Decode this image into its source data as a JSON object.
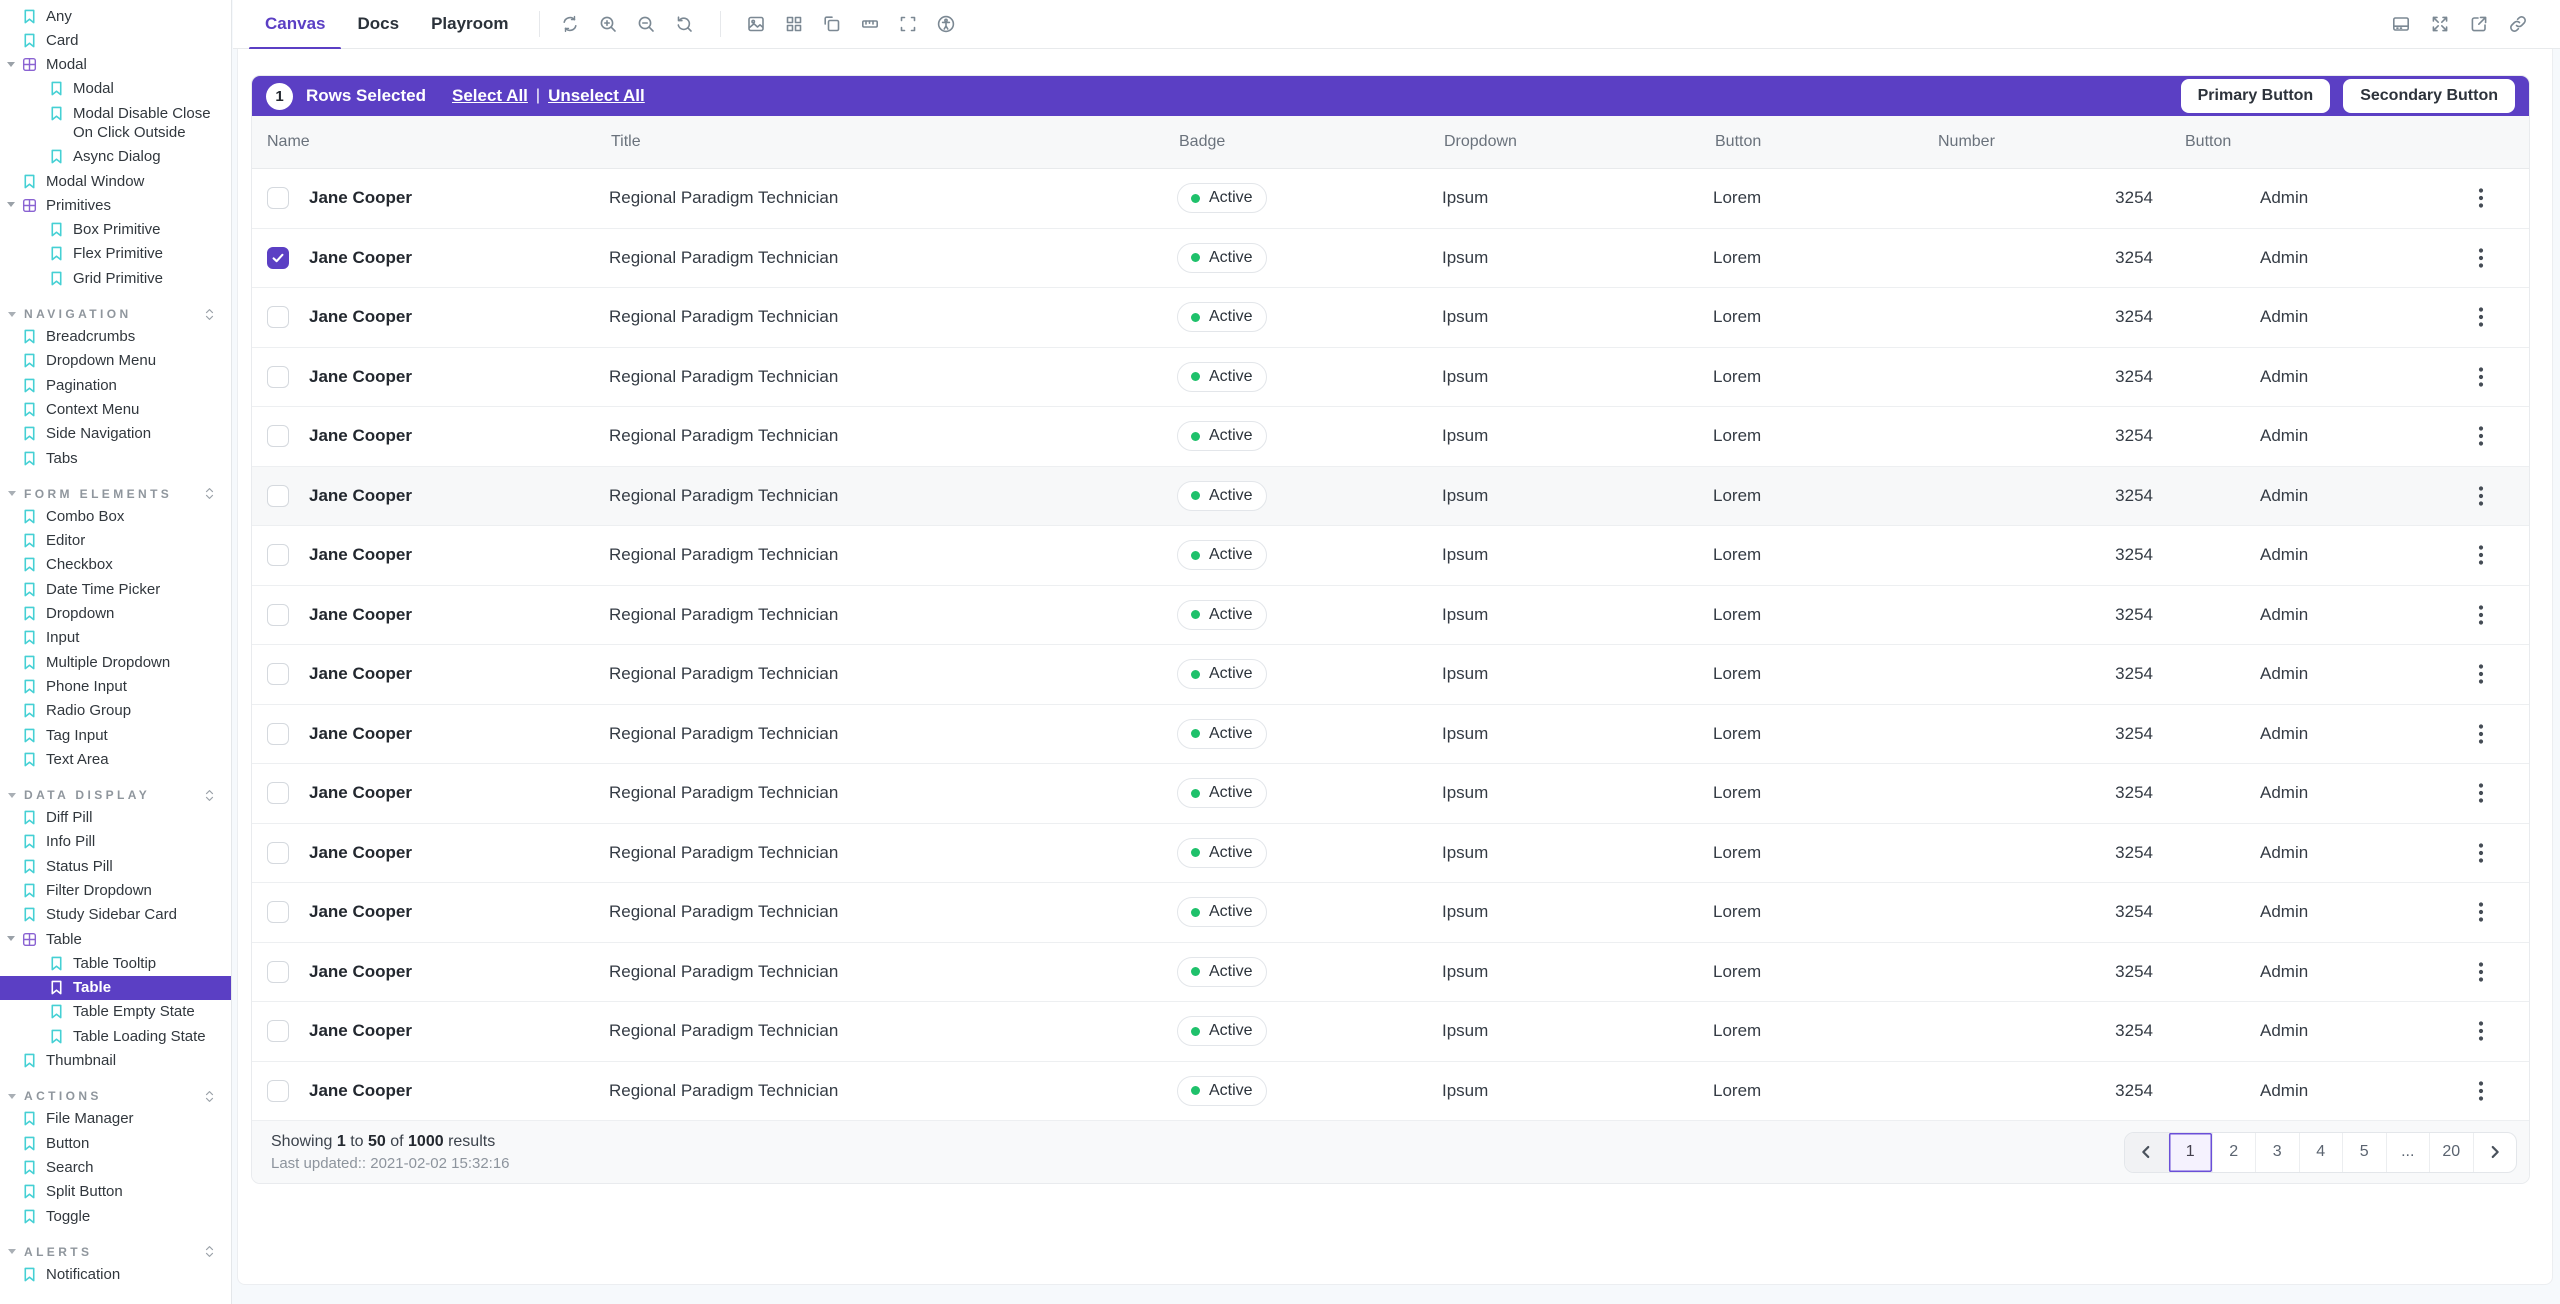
{
  "sidebar": {
    "items": [
      {
        "type": "story",
        "label": "Any",
        "depth": 0
      },
      {
        "type": "story",
        "label": "Card",
        "depth": 0
      },
      {
        "type": "folder",
        "label": "Modal",
        "depth": 0,
        "expanded": true
      },
      {
        "type": "story",
        "label": "Modal",
        "depth": 1
      },
      {
        "type": "story",
        "label": "Modal Disable Close On Click Outside",
        "depth": 1
      },
      {
        "type": "story",
        "label": "Async Dialog",
        "depth": 1
      },
      {
        "type": "story",
        "label": "Modal Window",
        "depth": 0
      },
      {
        "type": "folder",
        "label": "Primitives",
        "depth": 0,
        "expanded": true
      },
      {
        "type": "story",
        "label": "Box Primitive",
        "depth": 1
      },
      {
        "type": "story",
        "label": "Flex Primitive",
        "depth": 1
      },
      {
        "type": "story",
        "label": "Grid Primitive",
        "depth": 1
      },
      {
        "type": "section",
        "label": "NAVIGATION"
      },
      {
        "type": "story",
        "label": "Breadcrumbs",
        "depth": 0
      },
      {
        "type": "story",
        "label": "Dropdown Menu",
        "depth": 0
      },
      {
        "type": "story",
        "label": "Pagination",
        "depth": 0
      },
      {
        "type": "story",
        "label": "Context Menu",
        "depth": 0
      },
      {
        "type": "story",
        "label": "Side Navigation",
        "depth": 0
      },
      {
        "type": "story",
        "label": "Tabs",
        "depth": 0
      },
      {
        "type": "section",
        "label": "FORM ELEMENTS"
      },
      {
        "type": "story",
        "label": "Combo Box",
        "depth": 0
      },
      {
        "type": "story",
        "label": "Editor",
        "depth": 0
      },
      {
        "type": "story",
        "label": "Checkbox",
        "depth": 0
      },
      {
        "type": "story",
        "label": "Date Time Picker",
        "depth": 0
      },
      {
        "type": "story",
        "label": "Dropdown",
        "depth": 0
      },
      {
        "type": "story",
        "label": "Input",
        "depth": 0
      },
      {
        "type": "story",
        "label": "Multiple Dropdown",
        "depth": 0
      },
      {
        "type": "story",
        "label": "Phone Input",
        "depth": 0
      },
      {
        "type": "story",
        "label": "Radio Group",
        "depth": 0
      },
      {
        "type": "story",
        "label": "Tag Input",
        "depth": 0
      },
      {
        "type": "story",
        "label": "Text Area",
        "depth": 0
      },
      {
        "type": "section",
        "label": "DATA DISPLAY"
      },
      {
        "type": "story",
        "label": "Diff Pill",
        "depth": 0
      },
      {
        "type": "story",
        "label": "Info Pill",
        "depth": 0
      },
      {
        "type": "story",
        "label": "Status Pill",
        "depth": 0
      },
      {
        "type": "story",
        "label": "Filter Dropdown",
        "depth": 0
      },
      {
        "type": "story",
        "label": "Study Sidebar Card",
        "depth": 0
      },
      {
        "type": "folder",
        "label": "Table",
        "depth": 0,
        "expanded": true
      },
      {
        "type": "story",
        "label": "Table Tooltip",
        "depth": 1
      },
      {
        "type": "story",
        "label": "Table",
        "depth": 1,
        "selected": true
      },
      {
        "type": "story",
        "label": "Table Empty State",
        "depth": 1
      },
      {
        "type": "story",
        "label": "Table Loading State",
        "depth": 1
      },
      {
        "type": "story",
        "label": "Thumbnail",
        "depth": 0
      },
      {
        "type": "section",
        "label": "ACTIONS"
      },
      {
        "type": "story",
        "label": "File Manager",
        "depth": 0
      },
      {
        "type": "story",
        "label": "Button",
        "depth": 0
      },
      {
        "type": "story",
        "label": "Search",
        "depth": 0
      },
      {
        "type": "story",
        "label": "Split Button",
        "depth": 0
      },
      {
        "type": "story",
        "label": "Toggle",
        "depth": 0
      },
      {
        "type": "section",
        "label": "ALERTS"
      },
      {
        "type": "story",
        "label": "Notification",
        "depth": 0
      }
    ]
  },
  "toolbar": {
    "tabs": [
      {
        "label": "Canvas",
        "active": true
      },
      {
        "label": "Docs",
        "active": false
      },
      {
        "label": "Playroom",
        "active": false
      }
    ],
    "left_icons": [
      "remount-icon",
      "zoom-in-icon",
      "zoom-out-icon",
      "zoom-reset-icon",
      "divider",
      "background-icon",
      "grid-icon",
      "viewport-icon",
      "measure-icon",
      "outline-icon",
      "accessibility-icon"
    ],
    "right_icons": [
      "panel-toggle-icon",
      "fullscreen-icon",
      "open-external-icon",
      "copy-link-icon"
    ]
  },
  "selection_bar": {
    "count": "1",
    "label": "Rows Selected",
    "select_all": "Select All",
    "divider": "|",
    "unselect_all": "Unselect All",
    "primary_button": "Primary Button",
    "secondary_button": "Secondary Button"
  },
  "table": {
    "columns": [
      "Name",
      "Title",
      "Badge",
      "Dropdown",
      "Button",
      "Number",
      "Button"
    ],
    "row_count": 16,
    "checked_row": 2,
    "highlighted_row": 6,
    "row": {
      "name": "Jane Cooper",
      "title": "Regional Paradigm Technician",
      "badge": "Active",
      "dropdown": "Ipsum",
      "button": "Lorem",
      "number": "3254",
      "button2": "Admin"
    }
  },
  "footer": {
    "showing": {
      "prefix": "Showing",
      "from": "1",
      "to_word": "to",
      "to": "50",
      "of_word": "of",
      "total": "1000",
      "suffix": "results"
    },
    "last_updated": "Last updated:: 2021-02-02 15:32:16",
    "pagination": {
      "pages": [
        "1",
        "2",
        "3",
        "4",
        "5",
        "...",
        "20"
      ],
      "active": "1"
    }
  },
  "colors": {
    "accent_purple": "#5B3FC4",
    "story_icon_teal": "#45D0D4",
    "folder_icon_purple": "#8A63D2",
    "status_green": "#1FC16B",
    "pager_active_border": "#6A4FD8",
    "pager_active_bg": "#F5F2FE"
  }
}
